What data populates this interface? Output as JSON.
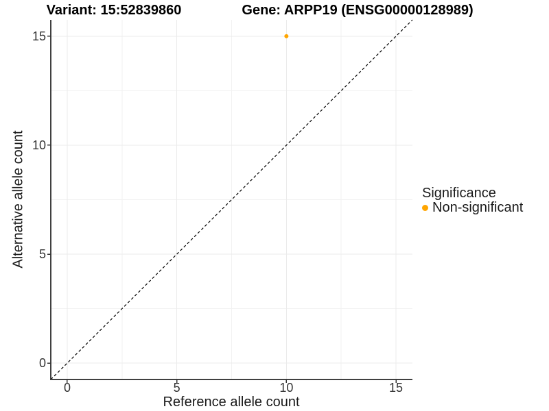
{
  "chart_data": {
    "type": "scatter",
    "titles": {
      "left": "Variant: 15:52839860",
      "right": "Gene: ARPP19 (ENSG00000128989)"
    },
    "xlabel": "Reference allele count",
    "ylabel": "Alternative allele count",
    "xlim": [
      -0.75,
      15.75
    ],
    "ylim": [
      -0.75,
      15.75
    ],
    "x_ticks": [
      0,
      5,
      10,
      15
    ],
    "y_ticks": [
      0,
      5,
      10,
      15
    ],
    "x_minor_ticks": [
      2.5,
      7.5,
      12.5
    ],
    "y_minor_ticks": [
      2.5,
      7.5,
      12.5
    ],
    "grid": {
      "major_color": "#EBEBEB",
      "minor_color": "#F2F2F2",
      "grid_on": true
    },
    "identity_line": {
      "type": "dashed",
      "color": "#000000",
      "from": -0.75,
      "to": 15.75
    },
    "points": [
      {
        "x": 10,
        "y": 15,
        "series": "Non-significant",
        "color": "#FFA500"
      }
    ],
    "legend": {
      "title": "Significance",
      "position": "right",
      "items": [
        {
          "label": "Non-significant",
          "color": "#FFA500"
        }
      ]
    },
    "colors": {
      "axis_line": "#404040",
      "tick_mark": "#333333",
      "tick_text": "#333333",
      "background": "#FFFFFF"
    }
  }
}
